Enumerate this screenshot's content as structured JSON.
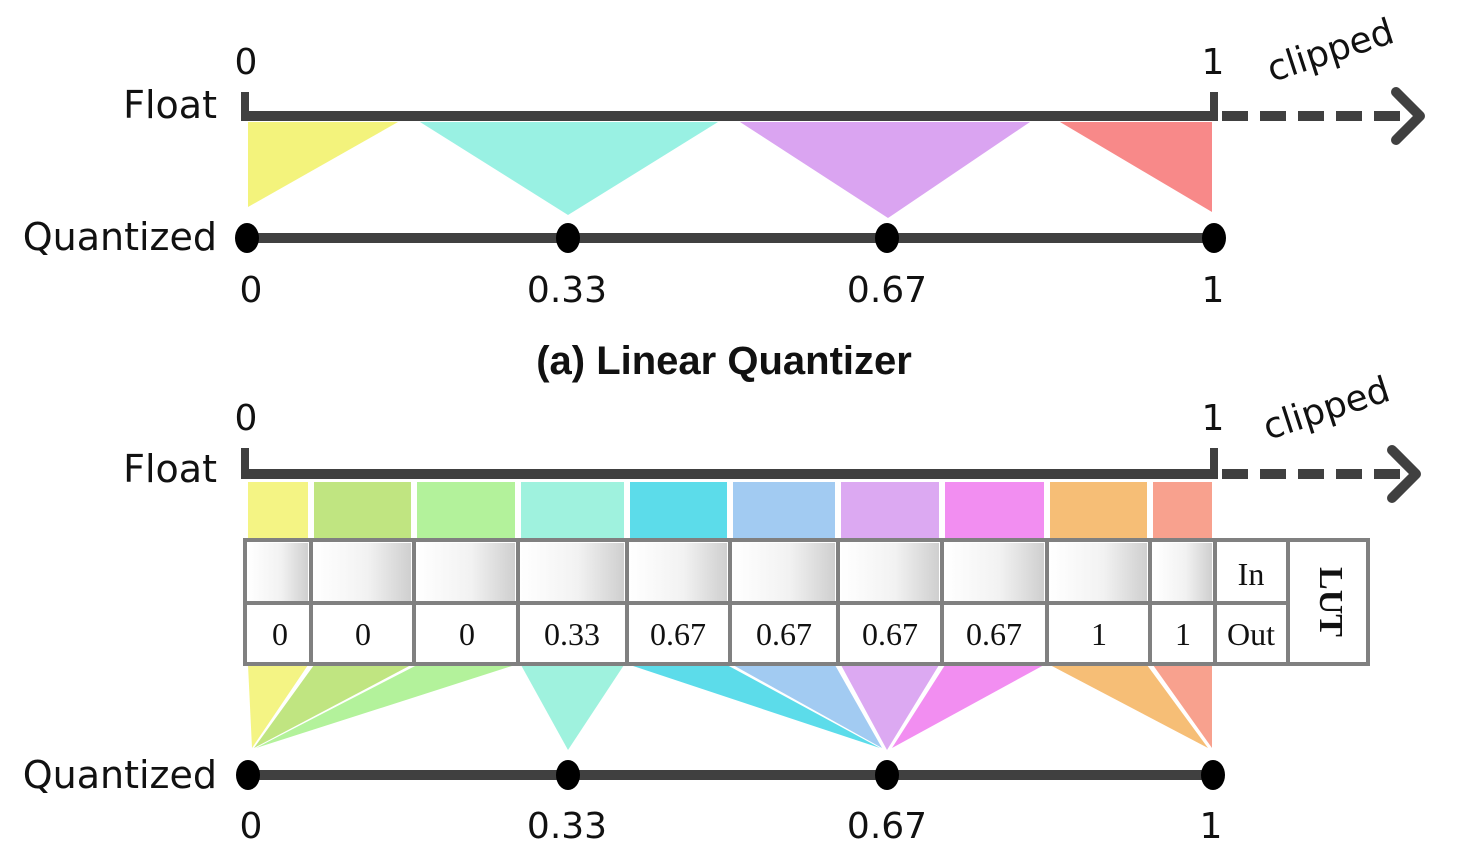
{
  "panel_a": {
    "float_label": "Float",
    "quantized_label": "Quantized",
    "float_start": "0",
    "float_end": "1",
    "clipped_label": "clipped",
    "quant_ticks": [
      "0",
      "0.33",
      "0.67",
      "1"
    ],
    "caption": "(a) Linear Quantizer"
  },
  "panel_b": {
    "float_label": "Float",
    "quantized_label": "Quantized",
    "float_start": "0",
    "float_end": "1",
    "clipped_label": "clipped",
    "quant_ticks": [
      "0",
      "0.33",
      "0.67",
      "1"
    ],
    "lut": {
      "title": "LUT",
      "in_label": "In",
      "out_label": "Out",
      "out_values": [
        "0",
        "0",
        "0",
        "0.33",
        "0.67",
        "0.67",
        "0.67",
        "0.67",
        "1",
        "1"
      ]
    }
  },
  "colors": {
    "axis": "#404040",
    "bin_colors": [
      "#f2f26e",
      "#b5e06b",
      "#a6f08a",
      "#8ef0d8",
      "#40d6e6",
      "#92c2f0",
      "#d69af0",
      "#f07aee",
      "#f5b35e",
      "#f7917a"
    ],
    "linear_colors": [
      "#f2f26e",
      "#8ef0e0",
      "#d69af0",
      "#f77c7c"
    ]
  }
}
